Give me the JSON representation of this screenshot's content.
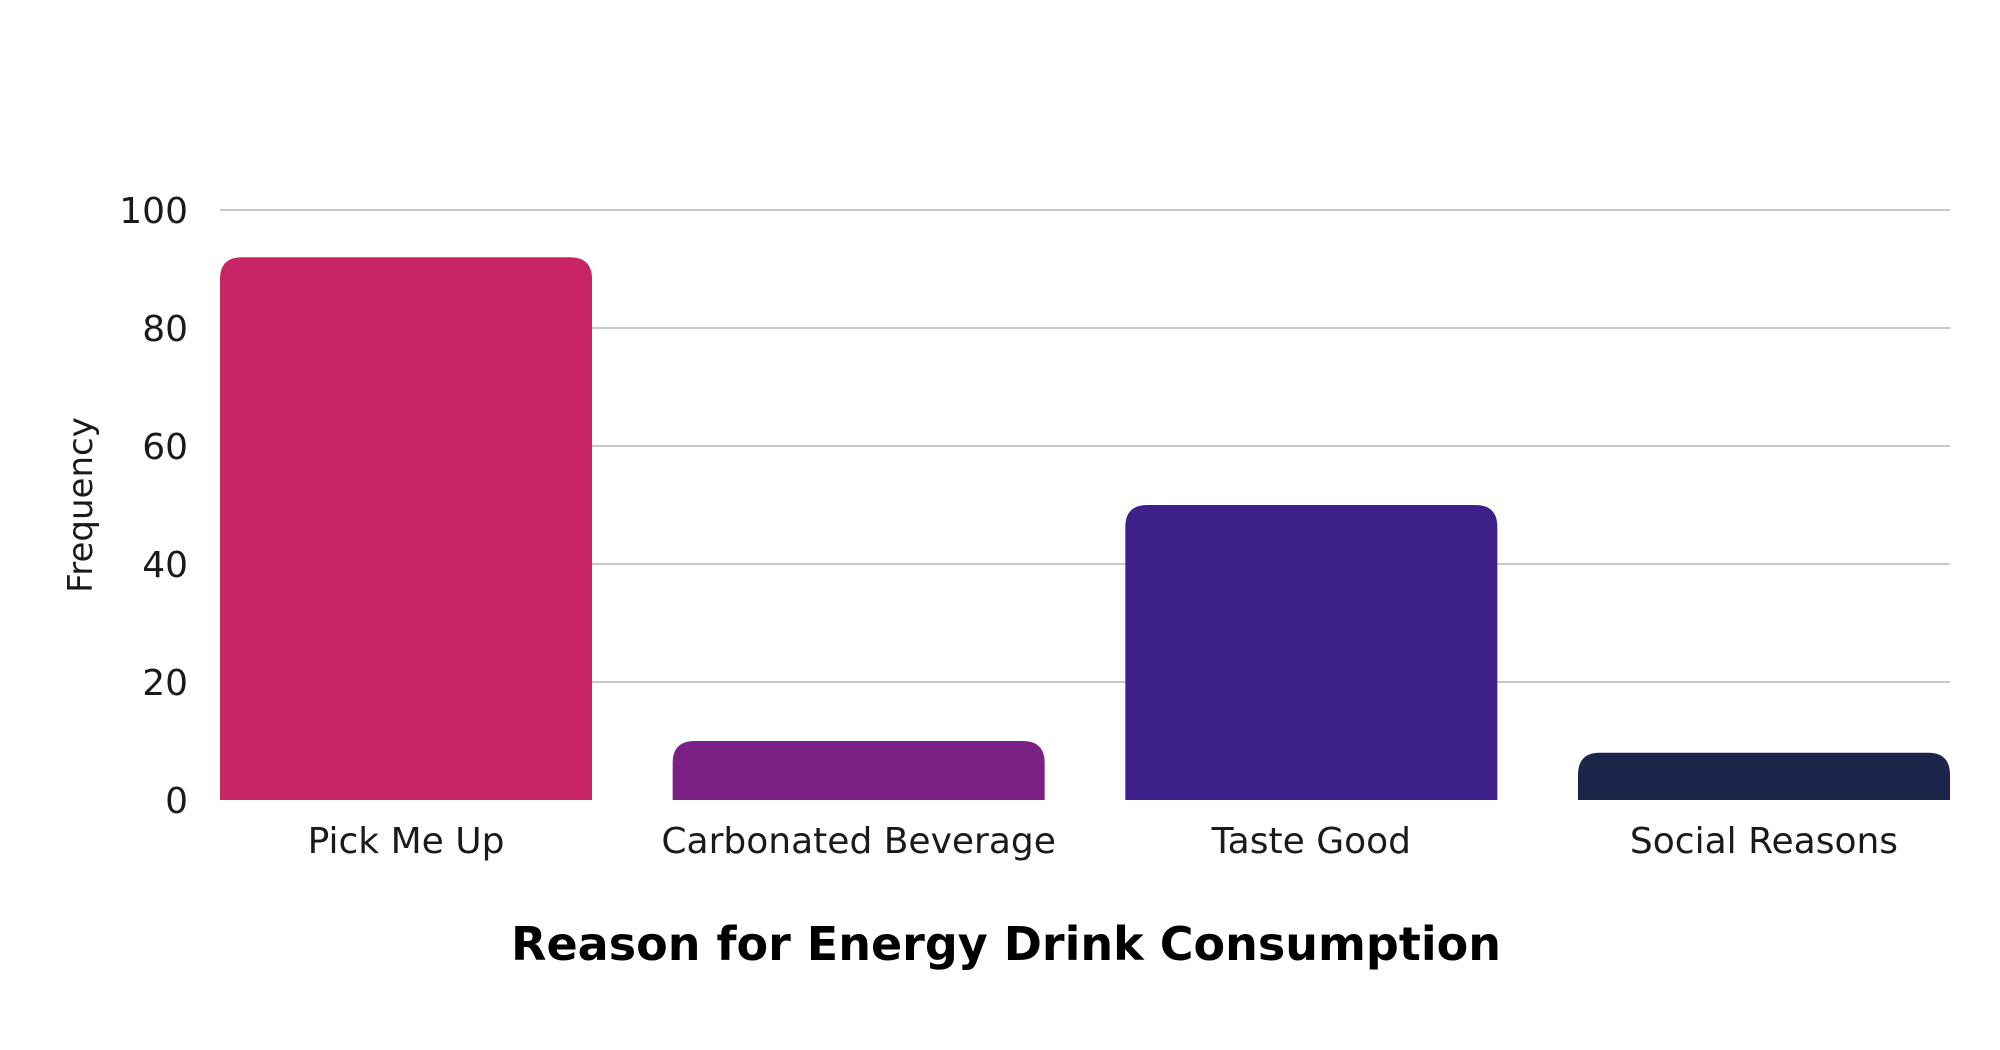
{
  "chart_data": {
    "type": "bar",
    "categories": [
      "Pick Me Up",
      "Carbonated Beverage",
      "Taste Good",
      "Social Reasons"
    ],
    "values": [
      92,
      10,
      50,
      8
    ],
    "colors": [
      "#c72566",
      "#7b2186",
      "#3e208a",
      "#1b2549"
    ],
    "title": "",
    "xlabel": "Reason for Energy Drink Consumption",
    "ylabel": "Frequency",
    "ylim": [
      0,
      100
    ],
    "yticks": [
      0,
      20,
      40,
      60,
      80,
      100
    ],
    "grid": true
  }
}
